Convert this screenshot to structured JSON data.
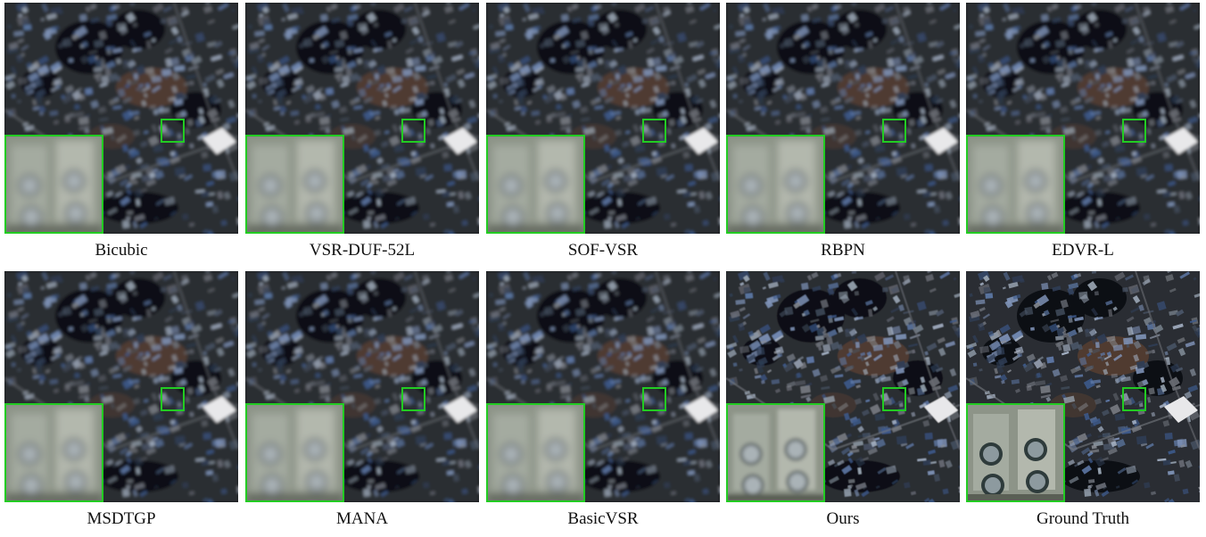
{
  "panels": [
    {
      "label": "Bicubic",
      "quality": "blurry"
    },
    {
      "label": "VSR-DUF-52L",
      "quality": "blurry"
    },
    {
      "label": "SOF-VSR",
      "quality": "blurry"
    },
    {
      "label": "RBPN",
      "quality": "blurry"
    },
    {
      "label": "EDVR-L",
      "quality": "blurry"
    },
    {
      "label": "MSDTGP",
      "quality": "blurry"
    },
    {
      "label": "MANA",
      "quality": "blurry"
    },
    {
      "label": "BasicVSR",
      "quality": "blurry"
    },
    {
      "label": "Ours",
      "quality": "sharper"
    },
    {
      "label": "Ground Truth",
      "quality": "sharp"
    }
  ],
  "colors": {
    "highlight_box": "#22cc22",
    "background": "#ffffff"
  }
}
